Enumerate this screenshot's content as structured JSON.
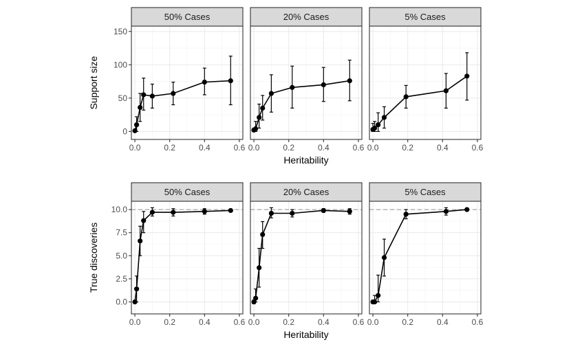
{
  "chart_data": {
    "type": "line",
    "facet_columns": [
      "50% Cases",
      "20% Cases",
      "5% Cases"
    ],
    "xlabel": "Heritability",
    "xlim": [
      -0.02,
      0.62
    ],
    "xticks": [
      0.0,
      0.2,
      0.4,
      0.6
    ],
    "xtick_labels": [
      "0.0",
      "0.2",
      "0.4",
      "0.6"
    ],
    "rows": [
      {
        "ylabel": "Support size",
        "ylim": [
          -12,
          158
        ],
        "yticks": [
          0,
          50,
          100,
          150
        ],
        "ytick_labels": [
          "0",
          "50",
          "100",
          "150"
        ],
        "reference_line": null,
        "panels": [
          {
            "strip": "50% Cases",
            "x": [
              0.0,
              0.01,
              0.03,
              0.05,
              0.1,
              0.22,
              0.4,
              0.55
            ],
            "y": [
              1,
              10,
              36,
              55,
              53,
              57,
              74,
              76
            ],
            "ylo": [
              0,
              0,
              15,
              32,
              35,
              40,
              55,
              40
            ],
            "yhi": [
              3,
              22,
              57,
              80,
              71,
              74,
              95,
              113
            ]
          },
          {
            "strip": "20% Cases",
            "x": [
              0.0,
              0.01,
              0.03,
              0.05,
              0.1,
              0.22,
              0.4,
              0.55
            ],
            "y": [
              2,
              4,
              21,
              35,
              57,
              66,
              70,
              76
            ],
            "ylo": [
              0,
              0,
              5,
              17,
              29,
              35,
              45,
              46
            ],
            "yhi": [
              5,
              15,
              41,
              54,
              85,
              98,
              96,
              107
            ]
          },
          {
            "strip": "5% Cases",
            "x": [
              0.0,
              0.01,
              0.03,
              0.065,
              0.19,
              0.42,
              0.54
            ],
            "y": [
              3,
              5,
              10,
              21,
              52,
              61,
              83
            ],
            "ylo": [
              0,
              0,
              0,
              5,
              35,
              35,
              47
            ],
            "yhi": [
              12,
              15,
              28,
              37,
              69,
              87,
              118
            ]
          }
        ]
      },
      {
        "ylabel": "True discoveries",
        "ylim": [
          -1.3,
          10.9
        ],
        "yticks": [
          0.0,
          2.5,
          5.0,
          7.5,
          10.0
        ],
        "ytick_labels": [
          "0.0",
          "2.5",
          "5.0",
          "7.5",
          "10.0"
        ],
        "reference_line": 10,
        "panels": [
          {
            "strip": "50% Cases",
            "x": [
              0.0,
              0.01,
              0.03,
              0.05,
              0.1,
              0.22,
              0.4,
              0.55
            ],
            "y": [
              0.0,
              1.4,
              6.6,
              8.8,
              9.7,
              9.7,
              9.8,
              9.9
            ],
            "ylo": [
              0.0,
              0.0,
              5.0,
              7.5,
              9.3,
              9.3,
              9.5,
              9.8
            ],
            "yhi": [
              0.0,
              2.8,
              8.2,
              9.8,
              10.2,
              10.1,
              10.1,
              10.0
            ]
          },
          {
            "strip": "20% Cases",
            "x": [
              0.0,
              0.01,
              0.03,
              0.05,
              0.1,
              0.22,
              0.4,
              0.55
            ],
            "y": [
              0.0,
              0.4,
              3.7,
              7.3,
              9.6,
              9.6,
              9.9,
              9.8
            ],
            "ylo": [
              -0.2,
              0.0,
              1.6,
              5.8,
              9.1,
              9.2,
              9.7,
              9.5
            ],
            "yhi": [
              0.2,
              1.4,
              5.8,
              8.7,
              10.2,
              10.0,
              10.1,
              10.1
            ]
          },
          {
            "strip": "5% Cases",
            "x": [
              0.0,
              0.01,
              0.03,
              0.065,
              0.19,
              0.42,
              0.54
            ],
            "y": [
              0.0,
              0.0,
              0.7,
              4.8,
              9.5,
              9.8,
              10.0
            ],
            "ylo": [
              0.0,
              0.0,
              0.0,
              2.8,
              9.0,
              9.4,
              9.9
            ],
            "yhi": [
              0.0,
              0.7,
              2.9,
              6.8,
              10.0,
              10.2,
              10.1
            ]
          }
        ]
      }
    ]
  }
}
